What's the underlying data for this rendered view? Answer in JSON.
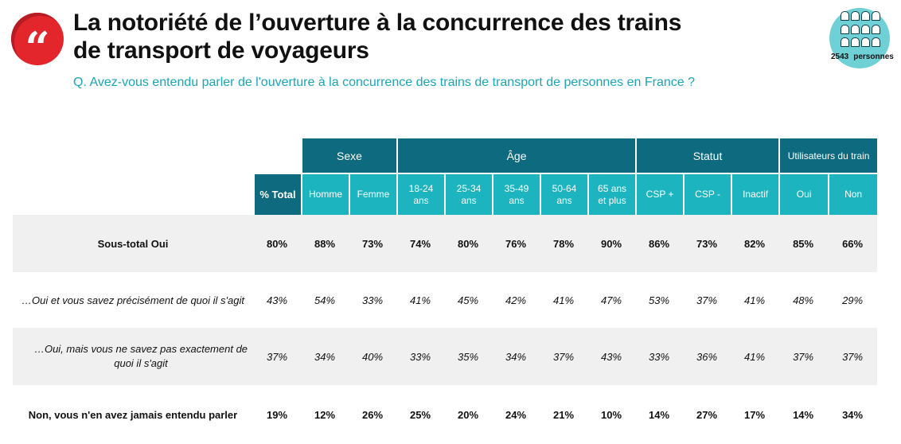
{
  "title": {
    "line1": "La notoriété de l’ouverture à la concurrence des trains",
    "line2": "de transport de voyageurs"
  },
  "quote_glyph": "“",
  "question": "Q. Avez-vous entendu parler de l'ouverture à la concurrence des trains de transport de personnes en France ?",
  "sample": {
    "count": "2543",
    "unit": "personnes"
  },
  "table": {
    "groups": [
      "Sexe",
      "Âge",
      "Statut",
      "Utilisateurs du train"
    ],
    "columns": [
      "% Total",
      "Homme",
      "Femme",
      "18-24 ans",
      "25-34 ans",
      "35-49 ans",
      "50-64 ans",
      "65 ans et plus",
      "CSP +",
      "CSP -",
      "Inactif",
      "Oui",
      "Non"
    ],
    "rows": [
      {
        "label": "Sous-total Oui",
        "values": [
          "80%",
          "88%",
          "73%",
          "74%",
          "80%",
          "76%",
          "78%",
          "90%",
          "86%",
          "73%",
          "82%",
          "85%",
          "66%"
        ]
      },
      {
        "label": "…Oui et vous savez précisément de quoi il s'agit",
        "values": [
          "43%",
          "54%",
          "33%",
          "41%",
          "45%",
          "42%",
          "41%",
          "47%",
          "53%",
          "37%",
          "41%",
          "48%",
          "29%"
        ]
      },
      {
        "label": "…Oui, mais vous ne savez pas exactement de quoi il s'agit",
        "values": [
          "37%",
          "34%",
          "40%",
          "33%",
          "35%",
          "34%",
          "37%",
          "43%",
          "33%",
          "36%",
          "41%",
          "37%",
          "37%"
        ]
      },
      {
        "label": "Non, vous n'en avez jamais entendu parler",
        "values": [
          "19%",
          "12%",
          "26%",
          "25%",
          "20%",
          "24%",
          "21%",
          "10%",
          "14%",
          "27%",
          "17%",
          "14%",
          "34%"
        ]
      }
    ]
  },
  "colors": {
    "dark_teal": "#0e6a7e",
    "light_teal": "#1cb4bf",
    "accent_red": "#e3262c",
    "question_teal": "#1aa6b7",
    "row_shade": "#f0f0f0"
  },
  "icons": {
    "badge": "quote-icon",
    "sample": "people-group-icon"
  }
}
